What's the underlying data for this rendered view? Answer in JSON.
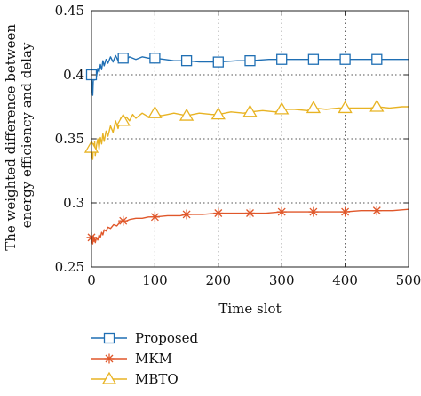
{
  "chart_data": {
    "type": "line",
    "xlabel": "Time slot",
    "ylabel_lines": [
      "The weighted difference between",
      "energy efficiency and delay"
    ],
    "xlim": [
      0,
      500
    ],
    "ylim": [
      0.25,
      0.45
    ],
    "xticks": [
      0,
      100,
      200,
      300,
      400,
      500
    ],
    "xtick_labels": [
      "0",
      "100",
      "200",
      "300",
      "400",
      "500"
    ],
    "yticks": [
      0.25,
      0.3,
      0.35,
      0.4,
      0.45
    ],
    "ytick_labels": [
      "0.25",
      "0.3",
      "0.35",
      "0.4",
      "0.45"
    ],
    "grid": true,
    "legend_position": "below",
    "series": [
      {
        "name": "Proposed",
        "color": "#1f6fb4",
        "marker": "square",
        "points": [
          [
            0,
            0.4
          ],
          [
            1,
            0.392
          ],
          [
            2,
            0.384
          ],
          [
            3,
            0.398
          ],
          [
            4,
            0.404
          ],
          [
            5,
            0.396
          ],
          [
            6,
            0.402
          ],
          [
            8,
            0.399
          ],
          [
            10,
            0.405
          ],
          [
            12,
            0.402
          ],
          [
            14,
            0.408
          ],
          [
            16,
            0.404
          ],
          [
            18,
            0.411
          ],
          [
            20,
            0.407
          ],
          [
            23,
            0.412
          ],
          [
            26,
            0.409
          ],
          [
            30,
            0.414
          ],
          [
            34,
            0.41
          ],
          [
            38,
            0.415
          ],
          [
            42,
            0.411
          ],
          [
            46,
            0.414
          ],
          [
            50,
            0.413
          ],
          [
            55,
            0.412
          ],
          [
            60,
            0.414
          ],
          [
            70,
            0.412
          ],
          [
            80,
            0.414
          ],
          [
            90,
            0.413
          ],
          [
            100,
            0.413
          ],
          [
            115,
            0.412
          ],
          [
            130,
            0.411
          ],
          [
            150,
            0.411
          ],
          [
            170,
            0.41
          ],
          [
            200,
            0.41
          ],
          [
            230,
            0.411
          ],
          [
            250,
            0.411
          ],
          [
            280,
            0.412
          ],
          [
            300,
            0.412
          ],
          [
            330,
            0.412
          ],
          [
            350,
            0.412
          ],
          [
            380,
            0.412
          ],
          [
            400,
            0.412
          ],
          [
            430,
            0.412
          ],
          [
            450,
            0.412
          ],
          [
            480,
            0.412
          ],
          [
            500,
            0.412
          ]
        ],
        "marker_x": [
          0,
          50,
          100,
          150,
          200,
          250,
          300,
          350,
          400,
          450
        ]
      },
      {
        "name": "MKM",
        "color": "#e0572a",
        "marker": "asterisk",
        "points": [
          [
            0,
            0.273
          ],
          [
            1,
            0.271
          ],
          [
            2,
            0.268
          ],
          [
            3,
            0.274
          ],
          [
            4,
            0.27
          ],
          [
            5,
            0.272
          ],
          [
            6,
            0.269
          ],
          [
            8,
            0.273
          ],
          [
            10,
            0.271
          ],
          [
            12,
            0.275
          ],
          [
            14,
            0.273
          ],
          [
            16,
            0.277
          ],
          [
            18,
            0.275
          ],
          [
            20,
            0.279
          ],
          [
            23,
            0.278
          ],
          [
            26,
            0.281
          ],
          [
            30,
            0.28
          ],
          [
            35,
            0.283
          ],
          [
            40,
            0.282
          ],
          [
            45,
            0.285
          ],
          [
            50,
            0.286
          ],
          [
            55,
            0.286
          ],
          [
            60,
            0.287
          ],
          [
            70,
            0.288
          ],
          [
            80,
            0.288
          ],
          [
            90,
            0.289
          ],
          [
            100,
            0.289
          ],
          [
            120,
            0.29
          ],
          [
            140,
            0.29
          ],
          [
            150,
            0.291
          ],
          [
            175,
            0.291
          ],
          [
            200,
            0.292
          ],
          [
            225,
            0.292
          ],
          [
            250,
            0.292
          ],
          [
            275,
            0.292
          ],
          [
            300,
            0.293
          ],
          [
            325,
            0.293
          ],
          [
            350,
            0.293
          ],
          [
            375,
            0.293
          ],
          [
            400,
            0.293
          ],
          [
            425,
            0.294
          ],
          [
            450,
            0.294
          ],
          [
            475,
            0.294
          ],
          [
            500,
            0.295
          ]
        ],
        "marker_x": [
          0,
          50,
          100,
          150,
          200,
          250,
          300,
          350,
          400,
          450
        ]
      },
      {
        "name": "MBTO",
        "color": "#e8b323",
        "marker": "triangle",
        "points": [
          [
            0,
            0.343
          ],
          [
            1,
            0.338
          ],
          [
            2,
            0.334
          ],
          [
            3,
            0.346
          ],
          [
            4,
            0.34
          ],
          [
            5,
            0.348
          ],
          [
            6,
            0.337
          ],
          [
            8,
            0.345
          ],
          [
            10,
            0.35
          ],
          [
            12,
            0.342
          ],
          [
            14,
            0.351
          ],
          [
            16,
            0.346
          ],
          [
            18,
            0.354
          ],
          [
            20,
            0.348
          ],
          [
            23,
            0.356
          ],
          [
            26,
            0.352
          ],
          [
            30,
            0.36
          ],
          [
            34,
            0.355
          ],
          [
            38,
            0.364
          ],
          [
            42,
            0.358
          ],
          [
            46,
            0.366
          ],
          [
            50,
            0.364
          ],
          [
            55,
            0.367
          ],
          [
            60,
            0.364
          ],
          [
            65,
            0.369
          ],
          [
            70,
            0.366
          ],
          [
            80,
            0.37
          ],
          [
            90,
            0.367
          ],
          [
            100,
            0.37
          ],
          [
            110,
            0.368
          ],
          [
            120,
            0.369
          ],
          [
            130,
            0.37
          ],
          [
            150,
            0.368
          ],
          [
            170,
            0.37
          ],
          [
            190,
            0.369
          ],
          [
            200,
            0.369
          ],
          [
            220,
            0.371
          ],
          [
            240,
            0.37
          ],
          [
            250,
            0.371
          ],
          [
            270,
            0.372
          ],
          [
            290,
            0.371
          ],
          [
            300,
            0.373
          ],
          [
            320,
            0.373
          ],
          [
            340,
            0.372
          ],
          [
            350,
            0.374
          ],
          [
            370,
            0.373
          ],
          [
            390,
            0.374
          ],
          [
            400,
            0.374
          ],
          [
            420,
            0.374
          ],
          [
            440,
            0.374
          ],
          [
            450,
            0.375
          ],
          [
            470,
            0.374
          ],
          [
            490,
            0.375
          ],
          [
            500,
            0.375
          ]
        ],
        "marker_x": [
          0,
          50,
          100,
          150,
          200,
          250,
          300,
          350,
          400,
          450
        ]
      }
    ]
  }
}
